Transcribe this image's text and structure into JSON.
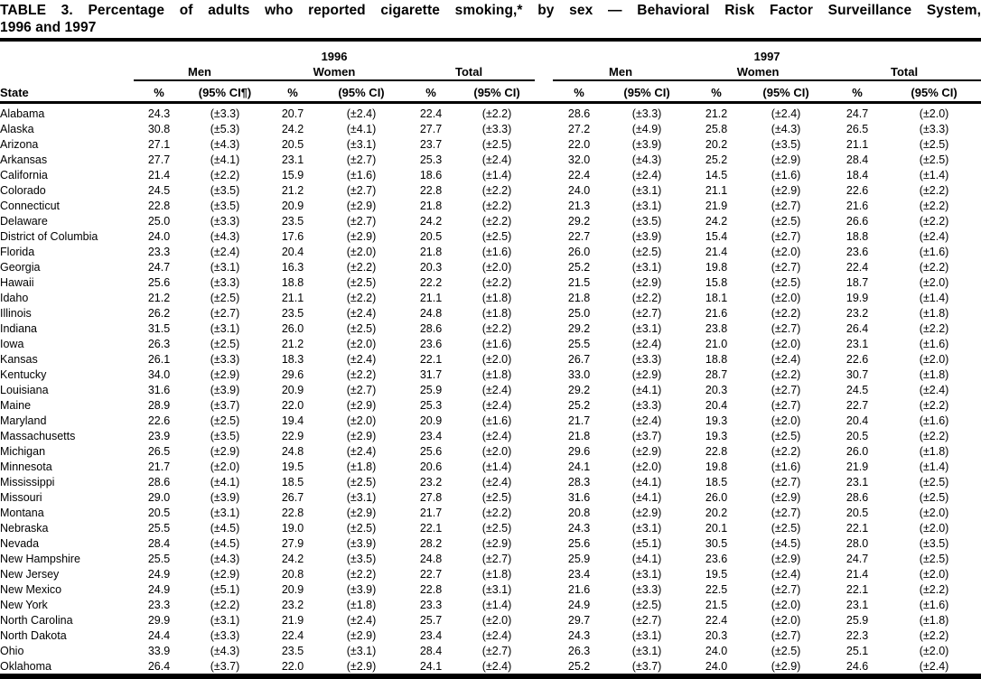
{
  "title": {
    "line1": "TABLE 3. Percentage of adults who reported cigarette smoking,* by sex — Behavioral Risk Factor Surveillance System,",
    "line2": "1996 and 1997"
  },
  "table": {
    "state_header": "State",
    "year_groups": [
      {
        "year": "1996",
        "subgroups": [
          {
            "label": "Men",
            "pct": "%",
            "ci": "(95% CI¶)"
          },
          {
            "label": "Women",
            "pct": "%",
            "ci": "(95% CI)"
          },
          {
            "label": "Total",
            "pct": "%",
            "ci": "(95% CI)"
          }
        ]
      },
      {
        "year": "1997",
        "subgroups": [
          {
            "label": "Men",
            "pct": "%",
            "ci": "(95% CI)"
          },
          {
            "label": "Women",
            "pct": "%",
            "ci": "(95% CI)"
          },
          {
            "label": "Total",
            "pct": "%",
            "ci": "(95% CI)"
          }
        ]
      }
    ],
    "rows": [
      [
        "Alabama",
        "24.3",
        "(±3.3)",
        "20.7",
        "(±2.4)",
        "22.4",
        "(±2.2)",
        "28.6",
        "(±3.3)",
        "21.2",
        "(±2.4)",
        "24.7",
        "(±2.0)"
      ],
      [
        "Alaska",
        "30.8",
        "(±5.3)",
        "24.2",
        "(±4.1)",
        "27.7",
        "(±3.3)",
        "27.2",
        "(±4.9)",
        "25.8",
        "(±4.3)",
        "26.5",
        "(±3.3)"
      ],
      [
        "Arizona",
        "27.1",
        "(±4.3)",
        "20.5",
        "(±3.1)",
        "23.7",
        "(±2.5)",
        "22.0",
        "(±3.9)",
        "20.2",
        "(±3.5)",
        "21.1",
        "(±2.5)"
      ],
      [
        "Arkansas",
        "27.7",
        "(±4.1)",
        "23.1",
        "(±2.7)",
        "25.3",
        "(±2.4)",
        "32.0",
        "(±4.3)",
        "25.2",
        "(±2.9)",
        "28.4",
        "(±2.5)"
      ],
      [
        "California",
        "21.4",
        "(±2.2)",
        "15.9",
        "(±1.6)",
        "18.6",
        "(±1.4)",
        "22.4",
        "(±2.4)",
        "14.5",
        "(±1.6)",
        "18.4",
        "(±1.4)"
      ],
      [
        "Colorado",
        "24.5",
        "(±3.5)",
        "21.2",
        "(±2.7)",
        "22.8",
        "(±2.2)",
        "24.0",
        "(±3.1)",
        "21.1",
        "(±2.9)",
        "22.6",
        "(±2.2)"
      ],
      [
        "Connecticut",
        "22.8",
        "(±3.5)",
        "20.9",
        "(±2.9)",
        "21.8",
        "(±2.2)",
        "21.3",
        "(±3.1)",
        "21.9",
        "(±2.7)",
        "21.6",
        "(±2.2)"
      ],
      [
        "Delaware",
        "25.0",
        "(±3.3)",
        "23.5",
        "(±2.7)",
        "24.2",
        "(±2.2)",
        "29.2",
        "(±3.5)",
        "24.2",
        "(±2.5)",
        "26.6",
        "(±2.2)"
      ],
      [
        "District of Columbia",
        "24.0",
        "(±4.3)",
        "17.6",
        "(±2.9)",
        "20.5",
        "(±2.5)",
        "22.7",
        "(±3.9)",
        "15.4",
        "(±2.7)",
        "18.8",
        "(±2.4)"
      ],
      [
        "Florida",
        "23.3",
        "(±2.4)",
        "20.4",
        "(±2.0)",
        "21.8",
        "(±1.6)",
        "26.0",
        "(±2.5)",
        "21.4",
        "(±2.0)",
        "23.6",
        "(±1.6)"
      ],
      [
        "Georgia",
        "24.7",
        "(±3.1)",
        "16.3",
        "(±2.2)",
        "20.3",
        "(±2.0)",
        "25.2",
        "(±3.1)",
        "19.8",
        "(±2.7)",
        "22.4",
        "(±2.2)"
      ],
      [
        "Hawaii",
        "25.6",
        "(±3.3)",
        "18.8",
        "(±2.5)",
        "22.2",
        "(±2.2)",
        "21.5",
        "(±2.9)",
        "15.8",
        "(±2.5)",
        "18.7",
        "(±2.0)"
      ],
      [
        "Idaho",
        "21.2",
        "(±2.5)",
        "21.1",
        "(±2.2)",
        "21.1",
        "(±1.8)",
        "21.8",
        "(±2.2)",
        "18.1",
        "(±2.0)",
        "19.9",
        "(±1.4)"
      ],
      [
        "Illinois",
        "26.2",
        "(±2.7)",
        "23.5",
        "(±2.4)",
        "24.8",
        "(±1.8)",
        "25.0",
        "(±2.7)",
        "21.6",
        "(±2.2)",
        "23.2",
        "(±1.8)"
      ],
      [
        "Indiana",
        "31.5",
        "(±3.1)",
        "26.0",
        "(±2.5)",
        "28.6",
        "(±2.2)",
        "29.2",
        "(±3.1)",
        "23.8",
        "(±2.7)",
        "26.4",
        "(±2.2)"
      ],
      [
        "Iowa",
        "26.3",
        "(±2.5)",
        "21.2",
        "(±2.0)",
        "23.6",
        "(±1.6)",
        "25.5",
        "(±2.4)",
        "21.0",
        "(±2.0)",
        "23.1",
        "(±1.6)"
      ],
      [
        "Kansas",
        "26.1",
        "(±3.3)",
        "18.3",
        "(±2.4)",
        "22.1",
        "(±2.0)",
        "26.7",
        "(±3.3)",
        "18.8",
        "(±2.4)",
        "22.6",
        "(±2.0)"
      ],
      [
        "Kentucky",
        "34.0",
        "(±2.9)",
        "29.6",
        "(±2.2)",
        "31.7",
        "(±1.8)",
        "33.0",
        "(±2.9)",
        "28.7",
        "(±2.2)",
        "30.7",
        "(±1.8)"
      ],
      [
        "Louisiana",
        "31.6",
        "(±3.9)",
        "20.9",
        "(±2.7)",
        "25.9",
        "(±2.4)",
        "29.2",
        "(±4.1)",
        "20.3",
        "(±2.7)",
        "24.5",
        "(±2.4)"
      ],
      [
        "Maine",
        "28.9",
        "(±3.7)",
        "22.0",
        "(±2.9)",
        "25.3",
        "(±2.4)",
        "25.2",
        "(±3.3)",
        "20.4",
        "(±2.7)",
        "22.7",
        "(±2.2)"
      ],
      [
        "Maryland",
        "22.6",
        "(±2.5)",
        "19.4",
        "(±2.0)",
        "20.9",
        "(±1.6)",
        "21.7",
        "(±2.4)",
        "19.3",
        "(±2.0)",
        "20.4",
        "(±1.6)"
      ],
      [
        "Massachusetts",
        "23.9",
        "(±3.5)",
        "22.9",
        "(±2.9)",
        "23.4",
        "(±2.4)",
        "21.8",
        "(±3.7)",
        "19.3",
        "(±2.5)",
        "20.5",
        "(±2.2)"
      ],
      [
        "Michigan",
        "26.5",
        "(±2.9)",
        "24.8",
        "(±2.4)",
        "25.6",
        "(±2.0)",
        "29.6",
        "(±2.9)",
        "22.8",
        "(±2.2)",
        "26.0",
        "(±1.8)"
      ],
      [
        "Minnesota",
        "21.7",
        "(±2.0)",
        "19.5",
        "(±1.8)",
        "20.6",
        "(±1.4)",
        "24.1",
        "(±2.0)",
        "19.8",
        "(±1.6)",
        "21.9",
        "(±1.4)"
      ],
      [
        "Mississippi",
        "28.6",
        "(±4.1)",
        "18.5",
        "(±2.5)",
        "23.2",
        "(±2.4)",
        "28.3",
        "(±4.1)",
        "18.5",
        "(±2.7)",
        "23.1",
        "(±2.5)"
      ],
      [
        "Missouri",
        "29.0",
        "(±3.9)",
        "26.7",
        "(±3.1)",
        "27.8",
        "(±2.5)",
        "31.6",
        "(±4.1)",
        "26.0",
        "(±2.9)",
        "28.6",
        "(±2.5)"
      ],
      [
        "Montana",
        "20.5",
        "(±3.1)",
        "22.8",
        "(±2.9)",
        "21.7",
        "(±2.2)",
        "20.8",
        "(±2.9)",
        "20.2",
        "(±2.7)",
        "20.5",
        "(±2.0)"
      ],
      [
        "Nebraska",
        "25.5",
        "(±4.5)",
        "19.0",
        "(±2.5)",
        "22.1",
        "(±2.5)",
        "24.3",
        "(±3.1)",
        "20.1",
        "(±2.5)",
        "22.1",
        "(±2.0)"
      ],
      [
        "Nevada",
        "28.4",
        "(±4.5)",
        "27.9",
        "(±3.9)",
        "28.2",
        "(±2.9)",
        "25.6",
        "(±5.1)",
        "30.5",
        "(±4.5)",
        "28.0",
        "(±3.5)"
      ],
      [
        "New Hampshire",
        "25.5",
        "(±4.3)",
        "24.2",
        "(±3.5)",
        "24.8",
        "(±2.7)",
        "25.9",
        "(±4.1)",
        "23.6",
        "(±2.9)",
        "24.7",
        "(±2.5)"
      ],
      [
        "New Jersey",
        "24.9",
        "(±2.9)",
        "20.8",
        "(±2.2)",
        "22.7",
        "(±1.8)",
        "23.4",
        "(±3.1)",
        "19.5",
        "(±2.4)",
        "21.4",
        "(±2.0)"
      ],
      [
        "New Mexico",
        "24.9",
        "(±5.1)",
        "20.9",
        "(±3.9)",
        "22.8",
        "(±3.1)",
        "21.6",
        "(±3.3)",
        "22.5",
        "(±2.7)",
        "22.1",
        "(±2.2)"
      ],
      [
        "New York",
        "23.3",
        "(±2.2)",
        "23.2",
        "(±1.8)",
        "23.3",
        "(±1.4)",
        "24.9",
        "(±2.5)",
        "21.5",
        "(±2.0)",
        "23.1",
        "(±1.6)"
      ],
      [
        "North Carolina",
        "29.9",
        "(±3.1)",
        "21.9",
        "(±2.4)",
        "25.7",
        "(±2.0)",
        "29.7",
        "(±2.7)",
        "22.4",
        "(±2.0)",
        "25.9",
        "(±1.8)"
      ],
      [
        "North Dakota",
        "24.4",
        "(±3.3)",
        "22.4",
        "(±2.9)",
        "23.4",
        "(±2.4)",
        "24.3",
        "(±3.1)",
        "20.3",
        "(±2.7)",
        "22.3",
        "(±2.2)"
      ],
      [
        "Ohio",
        "33.9",
        "(±4.3)",
        "23.5",
        "(±3.1)",
        "28.4",
        "(±2.7)",
        "26.3",
        "(±3.1)",
        "24.0",
        "(±2.5)",
        "25.1",
        "(±2.0)"
      ],
      [
        "Oklahoma",
        "26.4",
        "(±3.7)",
        "22.0",
        "(±2.9)",
        "24.1",
        "(±2.4)",
        "25.2",
        "(±3.7)",
        "24.0",
        "(±2.9)",
        "24.6",
        "(±2.4)"
      ]
    ]
  }
}
